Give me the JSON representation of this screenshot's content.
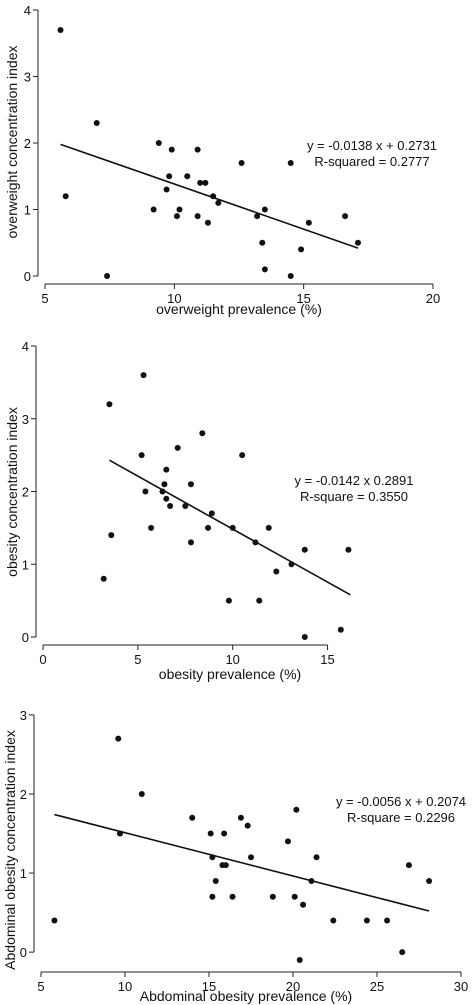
{
  "chart_data": [
    {
      "type": "scatter",
      "xlabel": "overweight prevalence (%)",
      "ylabel": "overweight concentration index",
      "annotation": [
        "y = -0.0138 x + 0.2731",
        "R-squared = 0.2777"
      ],
      "xlim": [
        5,
        20
      ],
      "ylim": [
        0,
        4
      ],
      "xticks": [
        5,
        10,
        15,
        20
      ],
      "yticks": [
        0,
        1,
        2,
        3,
        4
      ],
      "points": [
        [
          5.6,
          3.7
        ],
        [
          5.8,
          1.2
        ],
        [
          7.0,
          2.3
        ],
        [
          7.4,
          0.0
        ],
        [
          9.2,
          1.0
        ],
        [
          9.4,
          2.0
        ],
        [
          9.8,
          1.5
        ],
        [
          9.7,
          1.3
        ],
        [
          9.9,
          1.9
        ],
        [
          10.1,
          0.9
        ],
        [
          10.2,
          1.0
        ],
        [
          10.5,
          1.5
        ],
        [
          10.9,
          1.9
        ],
        [
          10.9,
          0.9
        ],
        [
          11.0,
          1.4
        ],
        [
          11.2,
          1.4
        ],
        [
          11.3,
          0.8
        ],
        [
          11.5,
          1.2
        ],
        [
          11.7,
          1.1
        ],
        [
          12.6,
          1.7
        ],
        [
          13.2,
          0.9
        ],
        [
          13.4,
          0.5
        ],
        [
          13.5,
          0.1
        ],
        [
          13.5,
          1.0
        ],
        [
          14.5,
          1.7
        ],
        [
          14.5,
          0.0
        ],
        [
          14.9,
          0.4
        ],
        [
          15.2,
          0.8
        ],
        [
          16.6,
          0.9
        ],
        [
          17.1,
          0.5
        ]
      ],
      "fit_line": {
        "x": [
          5.6,
          17.1
        ],
        "y": [
          1.98,
          0.42
        ]
      }
    },
    {
      "type": "scatter",
      "xlabel": "obesity prevalence (%)",
      "ylabel": "obesity concentration index",
      "annotation": [
        "y = -0.0142 x 0.2891",
        "R-square = 0.3550"
      ],
      "xlim": [
        0,
        16.5
      ],
      "ylim": [
        0,
        4
      ],
      "xticks": [
        0,
        5,
        10,
        15
      ],
      "yticks": [
        0,
        1,
        2,
        3,
        4
      ],
      "points": [
        [
          3.2,
          0.8
        ],
        [
          3.5,
          3.2
        ],
        [
          3.6,
          1.4
        ],
        [
          5.2,
          2.5
        ],
        [
          5.3,
          3.6
        ],
        [
          5.4,
          2.0
        ],
        [
          5.7,
          1.5
        ],
        [
          6.3,
          2.0
        ],
        [
          6.4,
          2.1
        ],
        [
          6.5,
          2.3
        ],
        [
          6.5,
          1.9
        ],
        [
          6.7,
          1.8
        ],
        [
          7.1,
          2.6
        ],
        [
          7.5,
          1.8
        ],
        [
          7.8,
          2.1
        ],
        [
          7.8,
          1.3
        ],
        [
          8.4,
          2.8
        ],
        [
          8.7,
          1.5
        ],
        [
          8.9,
          1.7
        ],
        [
          9.8,
          0.5
        ],
        [
          10.0,
          1.5
        ],
        [
          10.5,
          2.5
        ],
        [
          11.2,
          1.3
        ],
        [
          11.4,
          0.5
        ],
        [
          11.9,
          1.5
        ],
        [
          12.3,
          0.9
        ],
        [
          13.1,
          1.0
        ],
        [
          13.8,
          1.2
        ],
        [
          13.8,
          0.0
        ],
        [
          15.7,
          0.1
        ],
        [
          16.1,
          1.2
        ]
      ],
      "fit_line": {
        "x": [
          3.5,
          16.2
        ],
        "y": [
          2.43,
          0.58
        ]
      }
    },
    {
      "type": "scatter",
      "xlabel": "Abdominal obesity prevalence (%)",
      "ylabel": "Abdominal obesity concentration index",
      "annotation": [
        "y = -0.0056 x + 0.2074",
        "R-square = 0.2296"
      ],
      "xlim": [
        5,
        30
      ],
      "ylim": [
        -0.15,
        3.1
      ],
      "xticks": [
        5,
        10,
        15,
        20,
        25,
        30
      ],
      "yticks": [
        0,
        1,
        2,
        3
      ],
      "points": [
        [
          5.8,
          0.4
        ],
        [
          9.6,
          2.7
        ],
        [
          9.7,
          1.5
        ],
        [
          11.0,
          2.0
        ],
        [
          14.0,
          1.7
        ],
        [
          15.1,
          1.5
        ],
        [
          15.2,
          0.7
        ],
        [
          15.2,
          1.2
        ],
        [
          15.4,
          0.9
        ],
        [
          15.8,
          1.1
        ],
        [
          16.0,
          1.1
        ],
        [
          15.9,
          1.5
        ],
        [
          16.4,
          0.7
        ],
        [
          16.9,
          1.7
        ],
        [
          17.3,
          1.6
        ],
        [
          17.5,
          1.2
        ],
        [
          18.8,
          0.7
        ],
        [
          19.7,
          1.4
        ],
        [
          20.1,
          0.7
        ],
        [
          20.2,
          1.8
        ],
        [
          20.4,
          -0.1
        ],
        [
          20.6,
          0.6
        ],
        [
          21.1,
          0.9
        ],
        [
          21.4,
          1.2
        ],
        [
          22.4,
          0.4
        ],
        [
          24.4,
          0.4
        ],
        [
          25.6,
          0.4
        ],
        [
          26.5,
          0.0
        ],
        [
          26.9,
          1.1
        ],
        [
          28.1,
          0.9
        ]
      ],
      "fit_line": {
        "x": [
          5.8,
          28.1
        ],
        "y": [
          1.74,
          0.52
        ]
      }
    }
  ]
}
